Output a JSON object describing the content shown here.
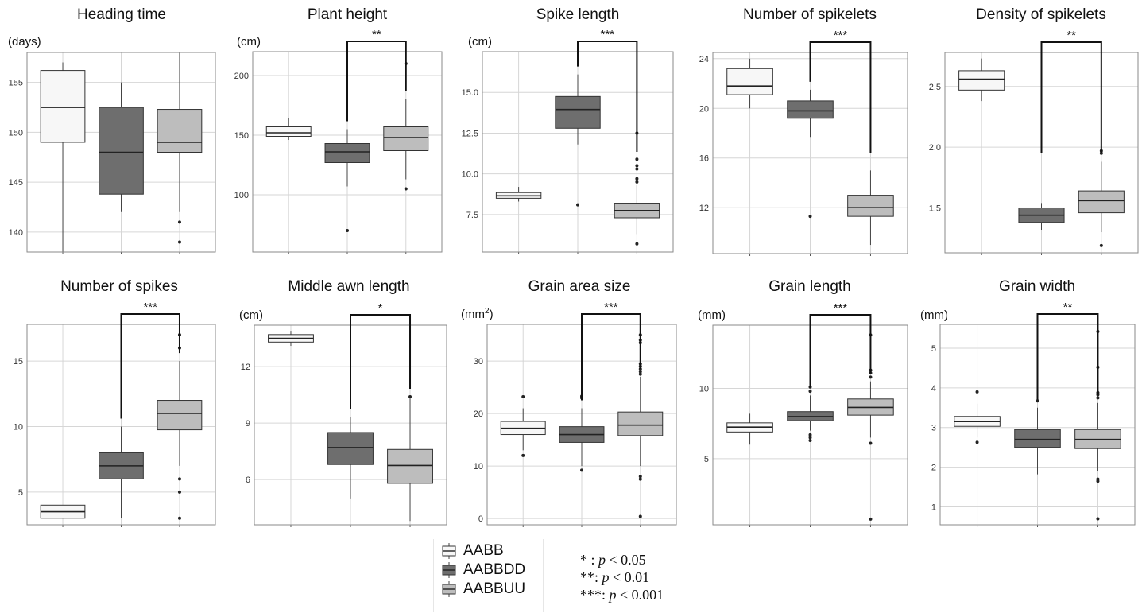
{
  "colors": {
    "AABB": "#f7f7f7",
    "AABBDD": "#6e6e6e",
    "AABBUU": "#bdbdbd",
    "grid": "#d6d6d6",
    "frame": "#8a8a8a"
  },
  "legend": {
    "items": [
      {
        "label": "AABB",
        "color": "#f7f7f7"
      },
      {
        "label": "AABBDD",
        "color": "#6e6e6e"
      },
      {
        "label": "AABBUU",
        "color": "#bdbdbd"
      }
    ],
    "significance": [
      {
        "stars": "* : ",
        "p": "p",
        "text": " < 0.05"
      },
      {
        "stars": "**: ",
        "p": "p",
        "text": " < 0.01"
      },
      {
        "stars": "***: ",
        "p": "p",
        "text": " < 0.001"
      }
    ]
  },
  "chart_data": [
    {
      "type": "box",
      "title": "Heading time",
      "unit": "(days)",
      "ylim": [
        138,
        158
      ],
      "ticks": [
        140,
        145,
        150,
        155
      ],
      "groups": [
        {
          "name": "AABB",
          "q1": 149,
          "median": 152.5,
          "q3": 156.2,
          "wlo": 138,
          "whi": 157,
          "outliers": []
        },
        {
          "name": "AABBDD",
          "q1": 143.8,
          "median": 148,
          "q3": 152.5,
          "wlo": 142,
          "whi": 155,
          "outliers": []
        },
        {
          "name": "AABBUU",
          "q1": 148,
          "median": 149,
          "q3": 152.3,
          "wlo": 142,
          "whi": 158,
          "outliers": [
            141,
            139
          ]
        }
      ],
      "sig": null
    },
    {
      "type": "box",
      "title": "Plant height",
      "unit": "(cm)",
      "ylim": [
        52,
        220
      ],
      "ticks": [
        100,
        150,
        200
      ],
      "groups": [
        {
          "name": "AABB",
          "q1": 149,
          "median": 152,
          "q3": 157,
          "wlo": 146,
          "whi": 164,
          "outliers": []
        },
        {
          "name": "AABBDD",
          "q1": 127,
          "median": 136,
          "q3": 143,
          "wlo": 107,
          "whi": 155,
          "outliers": [
            70
          ]
        },
        {
          "name": "AABBUU",
          "q1": 137,
          "median": 148,
          "q3": 157,
          "wlo": 113,
          "whi": 180,
          "outliers": [
            210,
            105
          ]
        }
      ],
      "sig": {
        "from": 1,
        "to": 2,
        "label": "**"
      }
    },
    {
      "type": "box",
      "title": "Spike length",
      "unit": "(cm)",
      "ylim": [
        5.2,
        17.5
      ],
      "ticks": [
        7.5,
        10.0,
        12.5,
        15.0
      ],
      "tickFormat": "1",
      "groups": [
        {
          "name": "AABB",
          "q1": 8.5,
          "median": 8.65,
          "q3": 8.85,
          "wlo": 8.3,
          "whi": 9.2,
          "outliers": []
        },
        {
          "name": "AABBDD",
          "q1": 12.8,
          "median": 13.95,
          "q3": 14.75,
          "wlo": 11.8,
          "whi": 16.1,
          "outliers": [
            8.1
          ]
        },
        {
          "name": "AABBUU",
          "q1": 7.3,
          "median": 7.75,
          "q3": 8.2,
          "wlo": 6.3,
          "whi": 9.3,
          "outliers": [
            12.5,
            10.9,
            10.5,
            10.3,
            9.7,
            9.5,
            5.7
          ]
        }
      ],
      "sig": {
        "from": 1,
        "to": 2,
        "label": "***"
      }
    },
    {
      "type": "box",
      "title": "Number of spikelets",
      "unit": "",
      "ylim": [
        8.3,
        24.5
      ],
      "ticks": [
        12,
        16,
        20,
        24
      ],
      "groups": [
        {
          "name": "AABB",
          "q1": 21.1,
          "median": 21.8,
          "q3": 23.2,
          "wlo": 20,
          "whi": 24,
          "outliers": []
        },
        {
          "name": "AABBDD",
          "q1": 19.2,
          "median": 19.8,
          "q3": 20.6,
          "wlo": 17.7,
          "whi": 21.5,
          "outliers": [
            11.3
          ]
        },
        {
          "name": "AABBUU",
          "q1": 11.3,
          "median": 12,
          "q3": 13,
          "wlo": 9,
          "whi": 15,
          "outliers": []
        }
      ],
      "sig": {
        "from": 1,
        "to": 2,
        "label": "***"
      }
    },
    {
      "type": "box",
      "title": "Density of spikelets",
      "unit": "",
      "ylim": [
        1.13,
        2.78
      ],
      "ticks": [
        1.5,
        2.0,
        2.5
      ],
      "tickFormat": "1",
      "groups": [
        {
          "name": "AABB",
          "q1": 2.47,
          "median": 2.56,
          "q3": 2.63,
          "wlo": 2.38,
          "whi": 2.73,
          "outliers": []
        },
        {
          "name": "AABBDD",
          "q1": 1.38,
          "median": 1.44,
          "q3": 1.5,
          "wlo": 1.32,
          "whi": 1.54,
          "outliers": []
        },
        {
          "name": "AABBUU",
          "q1": 1.46,
          "median": 1.56,
          "q3": 1.64,
          "wlo": 1.3,
          "whi": 1.88,
          "outliers": [
            1.97,
            1.95,
            1.19
          ]
        }
      ],
      "sig": {
        "from": 1,
        "to": 2,
        "label": "**"
      }
    },
    {
      "type": "box",
      "title": "Number of spikes",
      "unit": "",
      "ylim": [
        2.5,
        17.8
      ],
      "ticks": [
        5,
        10,
        15
      ],
      "groups": [
        {
          "name": "AABB",
          "q1": 3,
          "median": 3.5,
          "q3": 4,
          "wlo": 3,
          "whi": 4,
          "outliers": []
        },
        {
          "name": "AABBDD",
          "q1": 6,
          "median": 7,
          "q3": 8,
          "wlo": 3,
          "whi": 10,
          "outliers": []
        },
        {
          "name": "AABBUU",
          "q1": 9.75,
          "median": 11,
          "q3": 12,
          "wlo": 7,
          "whi": 15,
          "outliers": [
            17,
            16,
            6,
            5,
            3
          ]
        }
      ],
      "sig": {
        "from": 1,
        "to": 2,
        "label": "***"
      }
    },
    {
      "type": "box",
      "title": "Middle awn length",
      "unit": "(cm)",
      "ylim": [
        3.6,
        14.2
      ],
      "ticks": [
        6,
        9,
        12
      ],
      "groups": [
        {
          "name": "AABB",
          "q1": 13.3,
          "median": 13.5,
          "q3": 13.7,
          "wlo": 13.1,
          "whi": 13.9,
          "outliers": []
        },
        {
          "name": "AABBDD",
          "q1": 6.8,
          "median": 7.7,
          "q3": 8.5,
          "wlo": 5,
          "whi": 9.3,
          "outliers": []
        },
        {
          "name": "AABBUU",
          "q1": 5.8,
          "median": 6.75,
          "q3": 7.6,
          "wlo": 3.8,
          "whi": 10.4,
          "outliers": [
            10.4
          ]
        }
      ],
      "sig": {
        "from": 1,
        "to": 2,
        "label": "*"
      }
    },
    {
      "type": "box",
      "title": "Grain area size",
      "unit": "(mm2)",
      "unitText": "(mm",
      "unitSup": "2",
      "unitClose": ")",
      "ylim": [
        -1.2,
        37
      ],
      "ticks": [
        0,
        10,
        20,
        30
      ],
      "groups": [
        {
          "name": "AABB",
          "q1": 16,
          "median": 17.2,
          "q3": 18.5,
          "wlo": 13,
          "whi": 21,
          "outliers": [
            23.2,
            12
          ]
        },
        {
          "name": "AABBDD",
          "q1": 14.5,
          "median": 16,
          "q3": 17.5,
          "wlo": 10,
          "whi": 21,
          "outliers": [
            23.3,
            23,
            9.2
          ]
        },
        {
          "name": "AABBUU",
          "q1": 15.8,
          "median": 17.8,
          "q3": 20.3,
          "wlo": 10,
          "whi": 27,
          "outliers": [
            35,
            34,
            33.5,
            29.5,
            29,
            28.5,
            28,
            27.5,
            8,
            7.5,
            0.4
          ]
        }
      ],
      "sig": {
        "from": 1,
        "to": 2,
        "label": "***"
      }
    },
    {
      "type": "box",
      "title": "Grain length",
      "unit": "(mm)",
      "ylim": [
        0.3,
        14.5
      ],
      "ticks": [
        5,
        10
      ],
      "groups": [
        {
          "name": "AABB",
          "q1": 6.9,
          "median": 7.25,
          "q3": 7.55,
          "wlo": 6,
          "whi": 8.2,
          "outliers": []
        },
        {
          "name": "AABBDD",
          "q1": 7.7,
          "median": 8,
          "q3": 8.35,
          "wlo": 7,
          "whi": 9.5,
          "outliers": [
            10.1,
            9.8,
            6.7,
            6.5,
            6.3
          ]
        },
        {
          "name": "AABBUU",
          "q1": 8.1,
          "median": 8.65,
          "q3": 9.25,
          "wlo": 6.5,
          "whi": 10.5,
          "outliers": [
            13.8,
            11.3,
            11.1,
            10.8,
            6.1,
            0.7
          ]
        }
      ],
      "sig": {
        "from": 1,
        "to": 2,
        "label": "***"
      }
    },
    {
      "type": "box",
      "title": "Grain width",
      "unit": "(mm)",
      "ylim": [
        0.55,
        5.6
      ],
      "ticks": [
        1,
        2,
        3,
        4,
        5
      ],
      "groups": [
        {
          "name": "AABB",
          "q1": 3.03,
          "median": 3.15,
          "q3": 3.28,
          "wlo": 2.75,
          "whi": 3.6,
          "outliers": [
            3.9,
            2.63
          ]
        },
        {
          "name": "AABBDD",
          "q1": 2.5,
          "median": 2.7,
          "q3": 2.95,
          "wlo": 1.82,
          "whi": 3.5,
          "outliers": [
            3.67
          ]
        },
        {
          "name": "AABBUU",
          "q1": 2.47,
          "median": 2.7,
          "q3": 2.95,
          "wlo": 1.9,
          "whi": 3.62,
          "outliers": [
            5.42,
            4.52,
            3.88,
            3.83,
            3.75,
            1.7,
            1.65,
            0.7
          ]
        }
      ],
      "sig": {
        "from": 1,
        "to": 2,
        "label": "**"
      }
    }
  ]
}
